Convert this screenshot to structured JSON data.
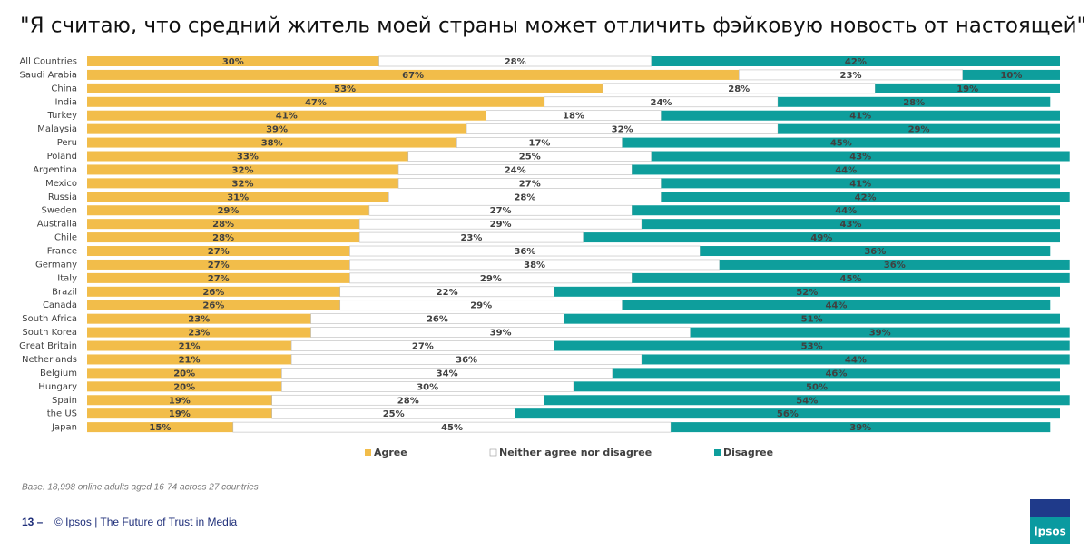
{
  "chart_data": {
    "type": "stacked-bar-horizontal",
    "title": "\"Я считаю, что средний житель моей страны может отличить фэйковую новость от настоящей\"",
    "categories": [
      "All Countries",
      "Saudi Arabia",
      "China",
      "India",
      "Turkey",
      "Malaysia",
      "Peru",
      "Poland",
      "Argentina",
      "Mexico",
      "Russia",
      "Sweden",
      "Australia",
      "Chile",
      "France",
      "Germany",
      "Italy",
      "Brazil",
      "Canada",
      "South Africa",
      "South Korea",
      "Great Britain",
      "Netherlands",
      "Belgium",
      "Hungary",
      "Spain",
      "the US",
      "Japan"
    ],
    "xlim": [
      0,
      100
    ],
    "series": [
      {
        "name": "Agree",
        "color": "#f2bd4a",
        "values": [
          30,
          67,
          53,
          47,
          41,
          39,
          38,
          33,
          32,
          32,
          31,
          29,
          28,
          28,
          27,
          27,
          27,
          26,
          26,
          23,
          23,
          21,
          21,
          20,
          20,
          19,
          19,
          15
        ],
        "value_labels": [
          "30%",
          "67%",
          "53%",
          "47%",
          "41%",
          "39%",
          "38%",
          "33%",
          "32%",
          "32%",
          "31%",
          "29%",
          "28%",
          "28%",
          "27%",
          "27%",
          "27%",
          "26%",
          "26%",
          "23%",
          "23%",
          "21%",
          "21%",
          "20%",
          "20%",
          "19%",
          "19%",
          "15%"
        ]
      },
      {
        "name": "Neither agree nor disagree",
        "color": "#ffffff",
        "values": [
          28,
          23,
          28,
          24,
          18,
          32,
          17,
          25,
          24,
          27,
          28,
          27,
          29,
          23,
          36,
          38,
          29,
          22,
          29,
          26,
          39,
          27,
          36,
          34,
          30,
          28,
          25,
          45
        ],
        "value_labels": [
          "28%",
          "23%",
          "28%",
          "24%",
          "18%",
          "32%",
          "17%",
          "25%",
          "24%",
          "27%",
          "28%",
          "27%",
          "29%",
          "23%",
          "36%",
          "38%",
          "29%",
          "22%",
          "29%",
          "26%",
          "39%",
          "27%",
          "36%",
          "34%",
          "30%",
          "28%",
          "25%",
          "45%"
        ]
      },
      {
        "name": "Disagree",
        "color": "#0e9e9c",
        "values": [
          42,
          10,
          19,
          28,
          41,
          29,
          45,
          43,
          44,
          41,
          42,
          44,
          43,
          49,
          36,
          36,
          45,
          52,
          44,
          51,
          39,
          53,
          44,
          46,
          50,
          54,
          56,
          39
        ],
        "value_labels": [
          "42%",
          "10%",
          "19%",
          "28%",
          "41%",
          "29%",
          "45%",
          "43%",
          "44%",
          "41%",
          "42%",
          "44%",
          "43%",
          "49%",
          "36%",
          "36%",
          "45%",
          "52%",
          "44%",
          "51%",
          "39%",
          "53%",
          "44%",
          "46%",
          "50%",
          "54%",
          "56%",
          "39%"
        ]
      }
    ],
    "note": "Base: 18,998 online adults aged 16-74 across 27 countries"
  },
  "footer": {
    "page": "13 –",
    "text": "© Ipsos | The Future of Trust in Media",
    "logo": "Ipsos"
  }
}
